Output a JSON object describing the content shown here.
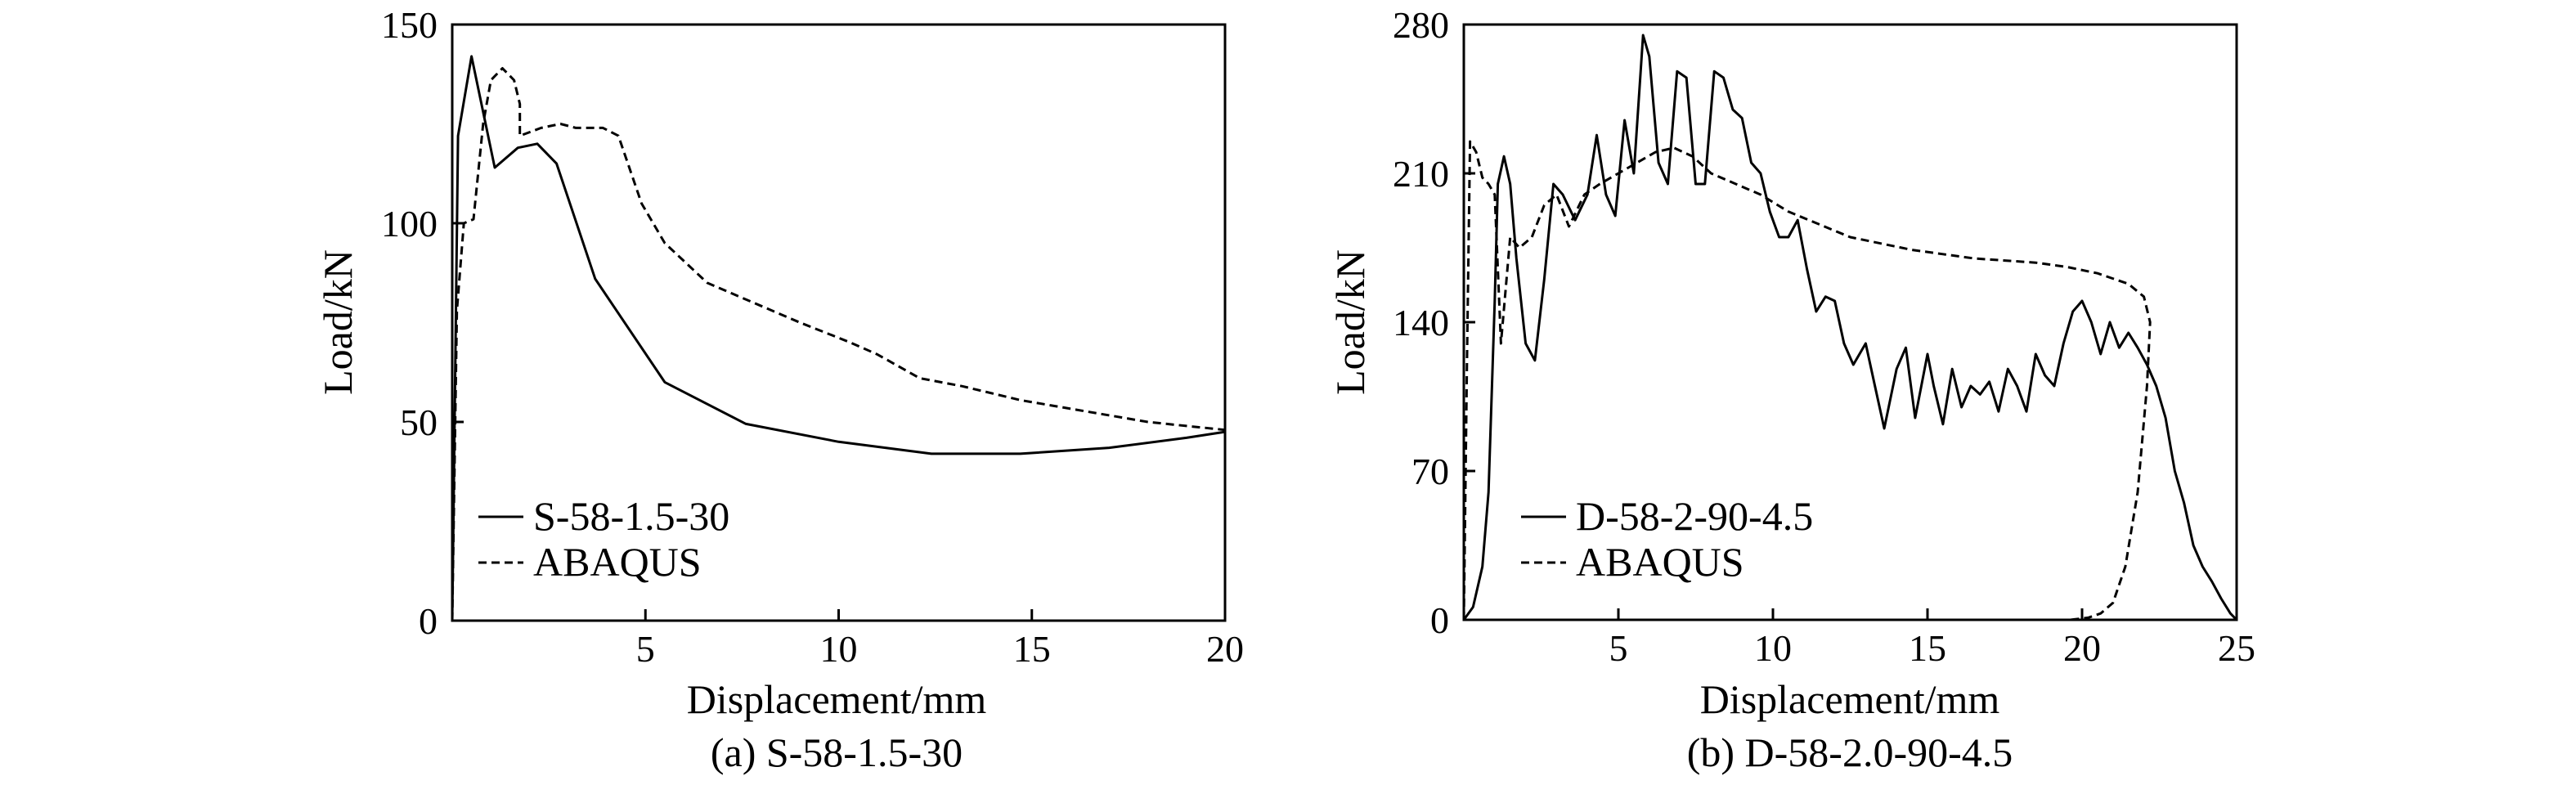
{
  "chart_data": [
    {
      "type": "line",
      "caption": "(a) S-58-1.5-30",
      "xlabel": "Displacement/mm",
      "ylabel": "Load/kN",
      "xlim": [
        0,
        20
      ],
      "ylim": [
        0,
        150
      ],
      "xticks": [
        5,
        10,
        15,
        20
      ],
      "yticks": [
        0,
        50,
        100,
        150
      ],
      "legend_position": "bottom-left",
      "series": [
        {
          "name": "S-58-1.5-30",
          "style": "solid",
          "x": [
            0,
            0.15,
            0.5,
            1.1,
            1.7,
            2.2,
            2.7,
            3.7,
            5.5,
            7.6,
            10,
            12.4,
            14.7,
            17,
            19,
            20
          ],
          "y": [
            0,
            122,
            142,
            114,
            119,
            120,
            115,
            86,
            60,
            49.5,
            45,
            42,
            42,
            43.5,
            46,
            47.5
          ]
        },
        {
          "name": "ABAQUS",
          "style": "dashed",
          "x": [
            0,
            0.12,
            0.3,
            0.55,
            0.8,
            1.0,
            1.3,
            1.6,
            1.75,
            1.75,
            2.3,
            2.8,
            3.2,
            3.6,
            3.9,
            4.3,
            4.9,
            5.5,
            6.6,
            7.8,
            9,
            10.3,
            11,
            12.1,
            13.2,
            14.7,
            15.6,
            16.8,
            18,
            19,
            20
          ],
          "y": [
            0,
            78,
            100,
            101,
            125,
            136,
            139,
            136,
            130,
            122,
            124,
            125,
            124,
            124,
            124,
            122,
            105,
            95,
            85,
            80,
            75,
            70,
            67,
            61,
            59,
            55.5,
            54,
            52,
            50,
            49,
            48
          ]
        }
      ]
    },
    {
      "type": "line",
      "caption": "(b) D-58-2.0-90-4.5",
      "xlabel": "Displacement/mm",
      "ylabel": "Load/kN",
      "xlim": [
        0,
        25
      ],
      "ylim": [
        0,
        280
      ],
      "xticks": [
        5,
        10,
        15,
        20,
        25
      ],
      "yticks": [
        0,
        70,
        140,
        210,
        280
      ],
      "legend_position": "bottom-left",
      "series": [
        {
          "name": "D-58-2-90-4.5",
          "style": "solid",
          "x": [
            0,
            0.3,
            0.6,
            0.8,
            1.0,
            1.1,
            1.3,
            1.5,
            1.7,
            2.0,
            2.3,
            2.6,
            2.9,
            3.2,
            3.6,
            4.0,
            4.3,
            4.6,
            4.9,
            5.2,
            5.5,
            5.8,
            6.0,
            6.3,
            6.6,
            6.9,
            7.2,
            7.5,
            7.8,
            8.1,
            8.4,
            8.7,
            9.0,
            9.3,
            9.6,
            9.9,
            10.2,
            10.5,
            10.8,
            11.1,
            11.4,
            11.7,
            12.0,
            12.3,
            12.6,
            13.0,
            13.3,
            13.6,
            14.0,
            14.3,
            14.6,
            15.0,
            15.2,
            15.5,
            15.8,
            16.1,
            16.4,
            16.7,
            17.0,
            17.3,
            17.6,
            17.9,
            18.2,
            18.5,
            18.8,
            19.1,
            19.4,
            19.7,
            20.0,
            20.3,
            20.6,
            20.9,
            21.2,
            21.5,
            21.8,
            22.1,
            22.4,
            22.7,
            23.0,
            23.3,
            23.6,
            23.9,
            24.2,
            24.5,
            24.8,
            25.0
          ],
          "y": [
            0,
            6,
            25,
            60,
            150,
            205,
            218,
            205,
            170,
            130,
            122,
            160,
            205,
            200,
            188,
            200,
            228,
            200,
            190,
            235,
            210,
            275,
            265,
            215,
            205,
            258,
            255,
            205,
            205,
            258,
            255,
            240,
            236,
            215,
            210,
            192,
            180,
            180,
            188,
            165,
            145,
            152,
            150,
            130,
            120,
            130,
            110,
            90,
            118,
            128,
            95,
            125,
            110,
            92,
            118,
            100,
            110,
            106,
            112,
            98,
            118,
            110,
            98,
            125,
            115,
            110,
            130,
            145,
            150,
            140,
            125,
            140,
            128,
            135,
            128,
            120,
            110,
            95,
            70,
            55,
            35,
            25,
            18,
            10,
            3,
            0
          ]
        },
        {
          "name": "ABAQUS",
          "style": "dashed",
          "x": [
            0,
            0.1,
            0.2,
            0.4,
            0.6,
            0.8,
            1.0,
            1.2,
            1.5,
            1.8,
            2.2,
            2.6,
            3.0,
            3.4,
            3.9,
            4.4,
            5.0,
            5.6,
            6.2,
            6.8,
            7.4,
            8.0,
            8.8,
            9.6,
            10.5,
            11.5,
            12.5,
            13.5,
            14.5,
            15.5,
            16.5,
            17.5,
            18.5,
            19.5,
            20.5,
            21.5,
            22.0,
            22.2,
            22.1,
            21.8,
            21.4,
            21.0,
            20.6,
            20.2,
            19.6,
            19.0,
            18.0,
            17.0
          ],
          "y": [
            0,
            120,
            225,
            220,
            208,
            205,
            200,
            130,
            180,
            175,
            180,
            195,
            200,
            185,
            200,
            205,
            210,
            215,
            220,
            222,
            218,
            210,
            205,
            200,
            192,
            186,
            180,
            177,
            174,
            172,
            170,
            169,
            168,
            166,
            163,
            158,
            152,
            140,
            110,
            60,
            25,
            8,
            3,
            1,
            0,
            0,
            0,
            0
          ]
        }
      ]
    }
  ]
}
